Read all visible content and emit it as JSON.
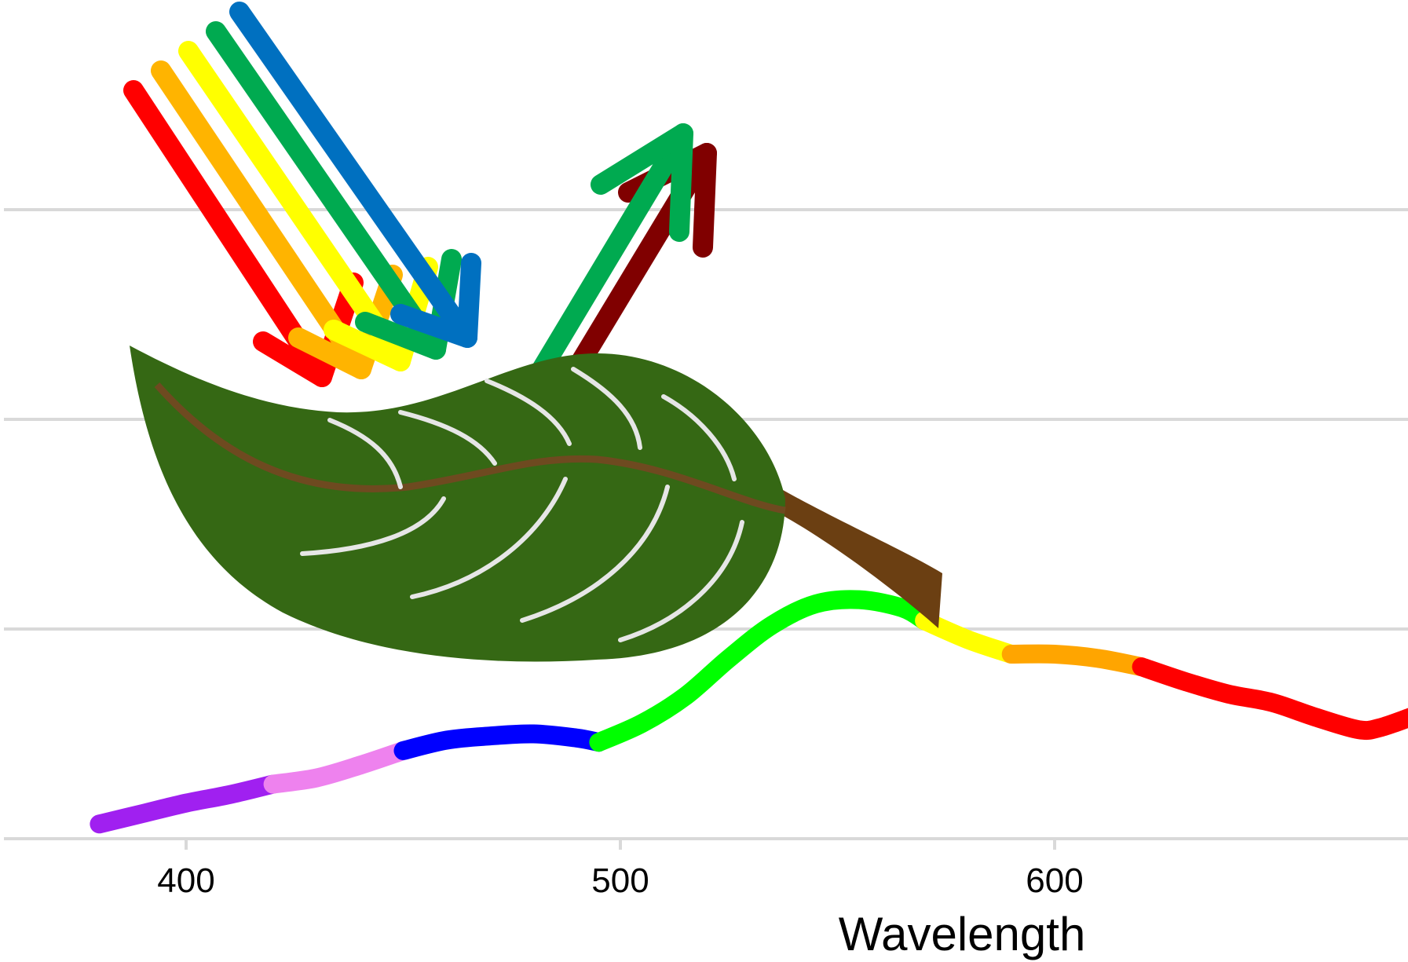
{
  "chart_data": {
    "type": "line",
    "title": "",
    "xlabel": "Wavelength",
    "ylabel": "",
    "xlim": [
      358,
      682
    ],
    "ylim": [
      0,
      4
    ],
    "x_ticks": [
      400,
      500,
      600
    ],
    "x_tick_labels": [
      "400",
      "500",
      "600"
    ],
    "grid": "horizontal",
    "y_gridlines": [
      0,
      1,
      2,
      3
    ],
    "series": [
      {
        "label_color": "violet",
        "color": "#a020f0",
        "x": [
          380,
          390,
          400,
          410,
          420
        ],
        "y": [
          0.07,
          0.12,
          0.17,
          0.21,
          0.26
        ]
      },
      {
        "label_color": "pink",
        "color": "#ee82ee",
        "x": [
          420,
          430,
          440,
          450
        ],
        "y": [
          0.26,
          0.29,
          0.35,
          0.42
        ]
      },
      {
        "label_color": "blue",
        "color": "#0000ff",
        "x": [
          450,
          460,
          470,
          480,
          490,
          495
        ],
        "y": [
          0.42,
          0.47,
          0.49,
          0.5,
          0.48,
          0.46
        ]
      },
      {
        "label_color": "green",
        "color": "#00ff00",
        "x": [
          495,
          505,
          515,
          525,
          535,
          545,
          555,
          565,
          570
        ],
        "y": [
          0.46,
          0.55,
          0.68,
          0.86,
          1.02,
          1.12,
          1.14,
          1.1,
          1.04
        ]
      },
      {
        "label_color": "yellow",
        "color": "#ffff00",
        "x": [
          570,
          580,
          590
        ],
        "y": [
          1.04,
          0.95,
          0.88
        ]
      },
      {
        "label_color": "orange",
        "color": "#ffa500",
        "x": [
          590,
          600,
          610,
          620
        ],
        "y": [
          0.88,
          0.88,
          0.86,
          0.82
        ]
      },
      {
        "label_color": "red",
        "color": "#ff0000",
        "x": [
          620,
          630,
          640,
          650,
          660,
          670,
          675,
          682
        ],
        "y": [
          0.82,
          0.75,
          0.69,
          0.65,
          0.58,
          0.52,
          0.53,
          0.58
        ]
      }
    ]
  },
  "illustration": {
    "leaf_colors": {
      "blade": "#356814",
      "midrib": "#6e4a20",
      "stem": "#6b3f12",
      "vein": "#e6e6e6"
    },
    "incoming_rays": [
      {
        "name": "red",
        "color": "#ff0000"
      },
      {
        "name": "orange",
        "color": "#ffb400"
      },
      {
        "name": "yellow",
        "color": "#ffff00"
      },
      {
        "name": "green",
        "color": "#00aa50"
      },
      {
        "name": "blue",
        "color": "#0070c0"
      }
    ],
    "reflected_rays": [
      {
        "name": "dark-red",
        "color": "#800000"
      },
      {
        "name": "green",
        "color": "#00aa50"
      }
    ]
  }
}
